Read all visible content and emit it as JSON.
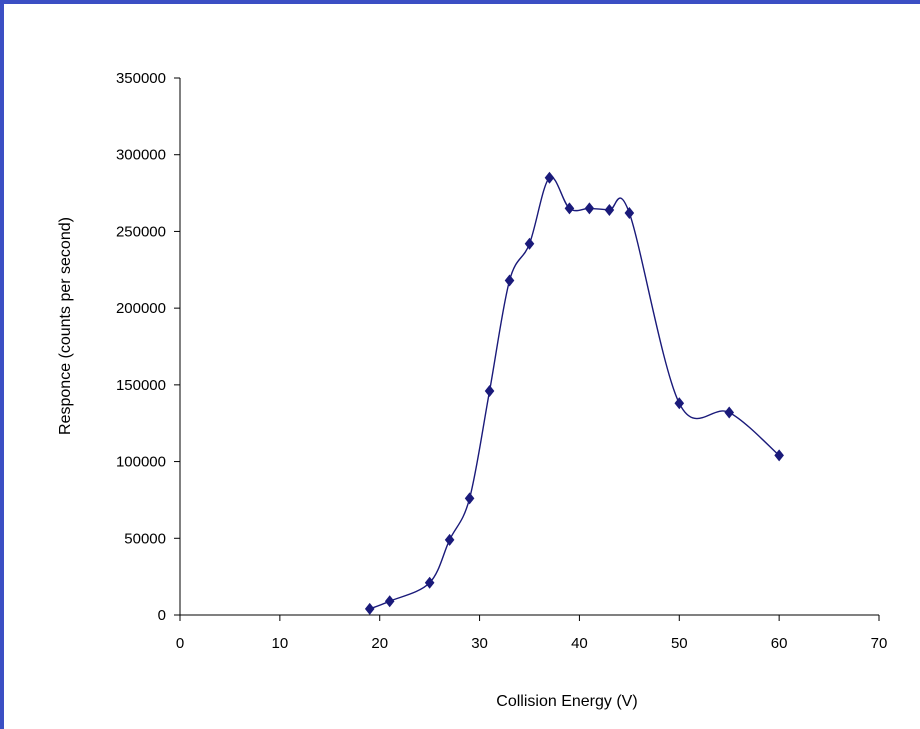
{
  "chart_data": {
    "type": "scatter",
    "title": "",
    "xlabel": "Collision Energy (V)",
    "ylabel": "Responce (counts per second)",
    "xlim": [
      0,
      70
    ],
    "ylim": [
      0,
      350000
    ],
    "x_ticks": [
      "0",
      "10",
      "20",
      "30",
      "40",
      "50",
      "60",
      "70"
    ],
    "y_ticks": [
      "0",
      "50000",
      "100000",
      "150000",
      "200000",
      "250000",
      "300000",
      "350000"
    ],
    "grid": false,
    "legend": "none",
    "series": [
      {
        "marker": "diamond",
        "line": "smooth",
        "color": "#1a1a7a",
        "points": [
          {
            "x": 19,
            "y": 4000
          },
          {
            "x": 21,
            "y": 9000
          },
          {
            "x": 25,
            "y": 21000
          },
          {
            "x": 27,
            "y": 49000
          },
          {
            "x": 29,
            "y": 76000
          },
          {
            "x": 31,
            "y": 146000
          },
          {
            "x": 33,
            "y": 218000
          },
          {
            "x": 35,
            "y": 242000
          },
          {
            "x": 37,
            "y": 285000
          },
          {
            "x": 39,
            "y": 265000
          },
          {
            "x": 41,
            "y": 265000
          },
          {
            "x": 43,
            "y": 264000
          },
          {
            "x": 45,
            "y": 262000
          },
          {
            "x": 50,
            "y": 138000
          },
          {
            "x": 55,
            "y": 132000
          },
          {
            "x": 60,
            "y": 104000
          }
        ]
      }
    ]
  },
  "colors": {
    "frame_border": "#3b4fc4",
    "series": "#1a1a7a",
    "axis": "#000000"
  }
}
